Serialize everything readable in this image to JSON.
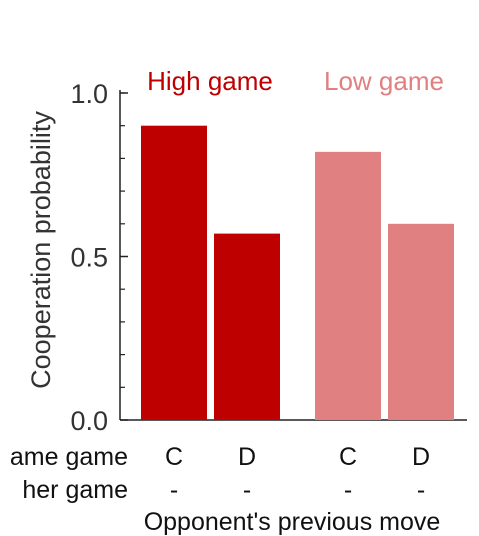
{
  "chart_data": {
    "type": "bar",
    "groups": [
      {
        "name": "High game",
        "color": "#bf0000",
        "categories": [
          "C",
          "D"
        ],
        "values": [
          0.9,
          0.57
        ]
      },
      {
        "name": "Low game",
        "color": "#e08080",
        "categories": [
          "C",
          "D"
        ],
        "values": [
          0.82,
          0.6
        ]
      }
    ],
    "ylabel": "Cooperation probability",
    "xlabel": "Opponent's previous move",
    "ylim": [
      0,
      1.0
    ],
    "yticks": [
      "0.0",
      "0.5",
      "1.0"
    ],
    "row_labels": [
      "ame game",
      "her game"
    ],
    "row2_marks": [
      "-",
      "-",
      "-",
      "-"
    ],
    "grid": false,
    "legend": "group labels above bars"
  }
}
